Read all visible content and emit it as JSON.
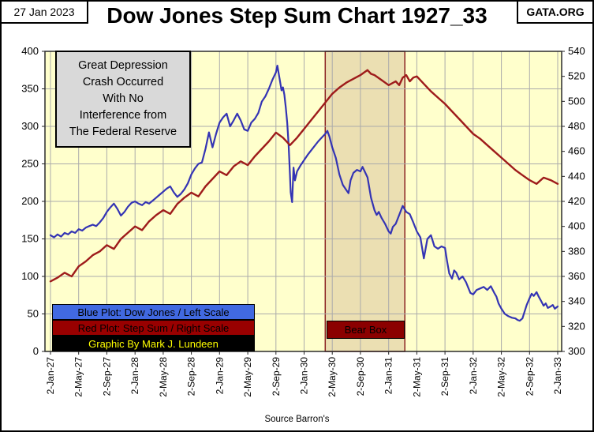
{
  "header": {
    "date": "27 Jan 2023",
    "site": "GATA.ORG",
    "title": "Dow Jones Step Sum Chart 1927_33"
  },
  "annotation": {
    "lines": [
      "Great Depression",
      "Crash Occurred",
      "With No",
      "Interference from",
      "The Federal Reserve"
    ]
  },
  "legend": [
    {
      "label": "Blue Plot: Dow Jones / Left Scale",
      "bg": "#4169E1",
      "fg": "#000000"
    },
    {
      "label": "Red Plot: Step Sum / Right Scale",
      "bg": "#990000",
      "fg": "#000000"
    },
    {
      "label": "Graphic By Mark J. Lundeen",
      "bg": "#000000",
      "fg": "#FFFF00"
    }
  ],
  "source": "Source Barron's",
  "bear_box": {
    "label": "Bear Box",
    "t_start": 39,
    "t_end": 50.3,
    "fill": "#EBDFB2",
    "border": "#8B2323"
  },
  "chart_data": {
    "type": "line",
    "title": "Dow Jones Step Sum Chart 1927_33",
    "plot_bg": "#FFFFCC",
    "grid_color": "#ABABAB",
    "x_unit": "months since 2-Jan-1927",
    "x_range": [
      0,
      72
    ],
    "x_tick_labels": [
      "2-Jan-27",
      "2-May-27",
      "2-Sep-27",
      "2-Jan-28",
      "2-May-28",
      "2-Sep-28",
      "2-Jan-29",
      "2-May-29",
      "2-Sep-29",
      "2-Jan-30",
      "2-May-30",
      "2-Sep-30",
      "2-Jan-31",
      "2-May-31",
      "2-Sep-31",
      "2-Jan-32",
      "2-May-32",
      "2-Sep-32",
      "2-Jan-33"
    ],
    "left_axis": {
      "series": "Dow Jones",
      "min": 0,
      "max": 400,
      "step": 50,
      "ticks": [
        0,
        50,
        100,
        150,
        200,
        250,
        300,
        350,
        400
      ]
    },
    "right_axis": {
      "series": "Step Sum",
      "min": 300,
      "max": 540,
      "step": 20,
      "ticks": [
        300,
        320,
        340,
        360,
        380,
        400,
        420,
        440,
        460,
        480,
        500,
        520,
        540
      ]
    },
    "series": [
      {
        "name": "Dow Jones",
        "axis": "left",
        "color": "#3434B4",
        "points": [
          [
            0,
            155
          ],
          [
            0.5,
            152
          ],
          [
            1,
            156
          ],
          [
            1.5,
            153
          ],
          [
            2,
            158
          ],
          [
            2.5,
            156
          ],
          [
            3,
            160
          ],
          [
            3.5,
            158
          ],
          [
            4,
            163
          ],
          [
            4.5,
            161
          ],
          [
            5,
            165
          ],
          [
            5.5,
            167
          ],
          [
            6,
            169
          ],
          [
            6.5,
            167
          ],
          [
            7,
            172
          ],
          [
            7.5,
            178
          ],
          [
            8,
            186
          ],
          [
            8.5,
            192
          ],
          [
            9,
            197
          ],
          [
            9.5,
            190
          ],
          [
            10,
            181
          ],
          [
            10.5,
            186
          ],
          [
            11,
            193
          ],
          [
            11.5,
            198
          ],
          [
            12,
            200
          ],
          [
            12.5,
            197
          ],
          [
            13,
            195
          ],
          [
            13.5,
            199
          ],
          [
            14,
            197
          ],
          [
            14.5,
            201
          ],
          [
            15,
            205
          ],
          [
            15.5,
            209
          ],
          [
            16,
            213
          ],
          [
            16.5,
            217
          ],
          [
            17,
            220
          ],
          [
            17.5,
            212
          ],
          [
            18,
            206
          ],
          [
            18.5,
            210
          ],
          [
            19,
            216
          ],
          [
            19.5,
            224
          ],
          [
            20,
            236
          ],
          [
            20.5,
            244
          ],
          [
            21,
            250
          ],
          [
            21.5,
            252
          ],
          [
            22,
            270
          ],
          [
            22.5,
            292
          ],
          [
            23,
            272
          ],
          [
            23.5,
            290
          ],
          [
            24,
            305
          ],
          [
            24.5,
            312
          ],
          [
            25,
            317
          ],
          [
            25.5,
            300
          ],
          [
            26,
            308
          ],
          [
            26.5,
            317
          ],
          [
            27,
            308
          ],
          [
            27.5,
            296
          ],
          [
            28,
            294
          ],
          [
            28.5,
            305
          ],
          [
            29,
            310
          ],
          [
            29.5,
            318
          ],
          [
            30,
            333
          ],
          [
            30.5,
            340
          ],
          [
            31,
            350
          ],
          [
            31.5,
            362
          ],
          [
            32,
            372
          ],
          [
            32.2,
            381
          ],
          [
            32.5,
            365
          ],
          [
            32.8,
            348
          ],
          [
            33,
            352
          ],
          [
            33.2,
            342
          ],
          [
            33.4,
            325
          ],
          [
            33.6,
            305
          ],
          [
            33.8,
            275
          ],
          [
            34,
            235
          ],
          [
            34.1,
            212
          ],
          [
            34.3,
            199
          ],
          [
            34.5,
            245
          ],
          [
            34.7,
            228
          ],
          [
            35,
            240
          ],
          [
            35.5,
            248
          ],
          [
            36,
            255
          ],
          [
            36.5,
            262
          ],
          [
            37,
            268
          ],
          [
            37.5,
            274
          ],
          [
            38,
            280
          ],
          [
            38.5,
            285
          ],
          [
            39,
            290
          ],
          [
            39.3,
            294
          ],
          [
            39.6,
            286
          ],
          [
            40,
            272
          ],
          [
            40.5,
            258
          ],
          [
            41,
            236
          ],
          [
            41.5,
            222
          ],
          [
            42,
            215
          ],
          [
            42.3,
            211
          ],
          [
            42.6,
            228
          ],
          [
            43,
            238
          ],
          [
            43.5,
            242
          ],
          [
            44,
            240
          ],
          [
            44.3,
            246
          ],
          [
            44.6,
            240
          ],
          [
            45,
            232
          ],
          [
            45.5,
            205
          ],
          [
            46,
            188
          ],
          [
            46.3,
            182
          ],
          [
            46.6,
            186
          ],
          [
            47,
            178
          ],
          [
            47.5,
            170
          ],
          [
            48,
            160
          ],
          [
            48.3,
            157
          ],
          [
            48.6,
            166
          ],
          [
            49,
            170
          ],
          [
            49.5,
            182
          ],
          [
            50,
            194
          ],
          [
            50.5,
            186
          ],
          [
            51,
            183
          ],
          [
            51.5,
            172
          ],
          [
            52,
            160
          ],
          [
            52.5,
            152
          ],
          [
            53,
            124
          ],
          [
            53.5,
            150
          ],
          [
            54,
            155
          ],
          [
            54.5,
            140
          ],
          [
            55,
            137
          ],
          [
            55.5,
            140
          ],
          [
            56,
            138
          ],
          [
            56.3,
            120
          ],
          [
            56.6,
            104
          ],
          [
            57,
            97
          ],
          [
            57.3,
            108
          ],
          [
            57.6,
            105
          ],
          [
            58,
            96
          ],
          [
            58.5,
            100
          ],
          [
            59,
            92
          ],
          [
            59.3,
            85
          ],
          [
            59.6,
            78
          ],
          [
            60,
            76
          ],
          [
            60.5,
            82
          ],
          [
            61,
            84
          ],
          [
            61.5,
            86
          ],
          [
            62,
            82
          ],
          [
            62.5,
            87
          ],
          [
            63,
            78
          ],
          [
            63.3,
            73
          ],
          [
            63.6,
            64
          ],
          [
            64,
            57
          ],
          [
            64.5,
            50
          ],
          [
            65,
            47
          ],
          [
            65.5,
            45
          ],
          [
            66,
            44
          ],
          [
            66.3,
            42
          ],
          [
            66.6,
            41
          ],
          [
            67,
            44
          ],
          [
            67.3,
            53
          ],
          [
            67.6,
            62
          ],
          [
            68,
            71
          ],
          [
            68.3,
            77
          ],
          [
            68.6,
            74
          ],
          [
            69,
            79
          ],
          [
            69.3,
            73
          ],
          [
            69.6,
            68
          ],
          [
            70,
            61
          ],
          [
            70.3,
            64
          ],
          [
            70.6,
            58
          ],
          [
            71,
            60
          ],
          [
            71.3,
            62
          ],
          [
            71.6,
            57
          ],
          [
            72,
            60
          ]
        ]
      },
      {
        "name": "Step Sum",
        "axis": "right",
        "color": "#9E1B1B",
        "points": [
          [
            0,
            356
          ],
          [
            1,
            359
          ],
          [
            2,
            363
          ],
          [
            3,
            360
          ],
          [
            4,
            368
          ],
          [
            5,
            372
          ],
          [
            6,
            377
          ],
          [
            7,
            380
          ],
          [
            8,
            385
          ],
          [
            9,
            382
          ],
          [
            10,
            390
          ],
          [
            11,
            395
          ],
          [
            12,
            400
          ],
          [
            13,
            397
          ],
          [
            14,
            404
          ],
          [
            15,
            409
          ],
          [
            16,
            413
          ],
          [
            17,
            410
          ],
          [
            18,
            418
          ],
          [
            19,
            423
          ],
          [
            20,
            427
          ],
          [
            21,
            424
          ],
          [
            22,
            432
          ],
          [
            23,
            438
          ],
          [
            24,
            444
          ],
          [
            25,
            441
          ],
          [
            26,
            448
          ],
          [
            27,
            452
          ],
          [
            28,
            449
          ],
          [
            29,
            456
          ],
          [
            30,
            462
          ],
          [
            31,
            468
          ],
          [
            32,
            475
          ],
          [
            33,
            471
          ],
          [
            34,
            465
          ],
          [
            35,
            471
          ],
          [
            36,
            478
          ],
          [
            37,
            485
          ],
          [
            38,
            492
          ],
          [
            39,
            499
          ],
          [
            40,
            506
          ],
          [
            41,
            511
          ],
          [
            42,
            515
          ],
          [
            43,
            518
          ],
          [
            44,
            521
          ],
          [
            44.5,
            523
          ],
          [
            45,
            525
          ],
          [
            45.5,
            522
          ],
          [
            46,
            521
          ],
          [
            47,
            517
          ],
          [
            48,
            513
          ],
          [
            49,
            516
          ],
          [
            49.5,
            513
          ],
          [
            50,
            519
          ],
          [
            50.5,
            521
          ],
          [
            51,
            516
          ],
          [
            51.5,
            519
          ],
          [
            52,
            520
          ],
          [
            53,
            514
          ],
          [
            54,
            508
          ],
          [
            55,
            503
          ],
          [
            56,
            498
          ],
          [
            57,
            492
          ],
          [
            58,
            486
          ],
          [
            59,
            480
          ],
          [
            60,
            474
          ],
          [
            61,
            470
          ],
          [
            62,
            465
          ],
          [
            63,
            460
          ],
          [
            64,
            455
          ],
          [
            65,
            450
          ],
          [
            66,
            445
          ],
          [
            67,
            441
          ],
          [
            68,
            437
          ],
          [
            69,
            434
          ],
          [
            70,
            439
          ],
          [
            71,
            437
          ],
          [
            72,
            434
          ]
        ]
      }
    ]
  }
}
